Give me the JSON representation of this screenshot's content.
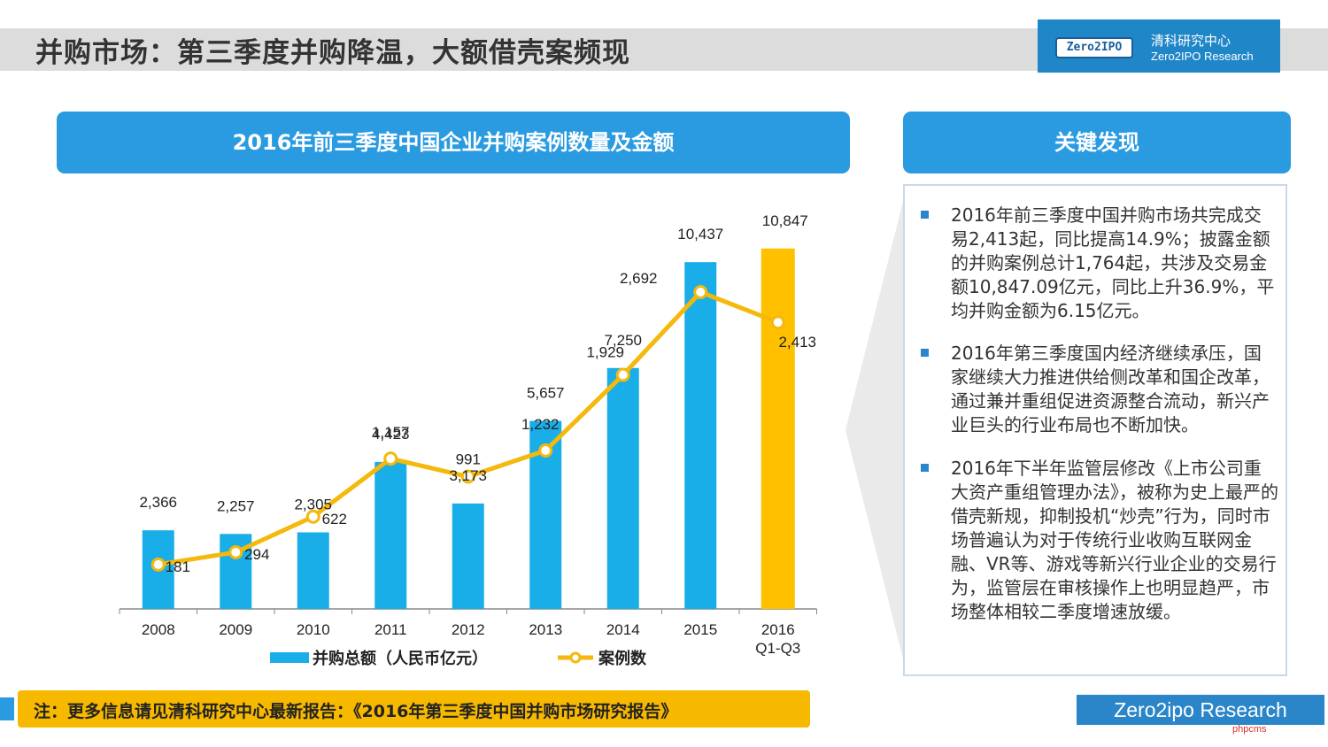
{
  "page_title": "并购市场：第三季度并购降温，大额借壳案频现",
  "logo": {
    "badge": "Zero2IPO",
    "cn": "清科研究中心",
    "en": "Zero2IPO Research"
  },
  "chart_header": "2016年前三季度中国企业并购案例数量及金额",
  "findings_header": "关键发现",
  "findings": [
    "2016年前三季度中国并购市场共完成交易2,413起，同比提高14.9%；披露金额的并购案例总计1,764起，共涉及交易金额10,847.09亿元，同比上升36.9%，平均并购金额为6.15亿元。",
    "2016年第三季度国内经济继续承压，国家继续大力推进供给侧改革和国企改革，通过兼并重组促进资源整合流动，新兴产业巨头的行业布局也不断加快。",
    "2016年下半年监管层修改《上市公司重大资产重组管理办法》，被称为史上最严的借壳新规，抑制投机“炒壳”行为，同时市场普遍认为对于传统行业收购互联网金融、VR等、游戏等新兴行业企业的交易行为，监管层在审核操作上也明显趋严，市场整体相较二季度增速放缓。"
  ],
  "note": "注：更多信息请见清科研究中心最新报告：《2016年第三季度中国并购市场研究报告》",
  "footer_brand": "Zero2ipo Research",
  "watermark": "phpcms",
  "colors": {
    "bar": "#1aaee8",
    "bar_highlight": "#ffc000",
    "line": "#f5b80c",
    "header": "#2a9be0"
  },
  "chart_data": {
    "type": "bar",
    "categories": [
      "2008",
      "2009",
      "2010",
      "2011",
      "2012",
      "2013",
      "2014",
      "2015",
      "2016 Q1-Q3"
    ],
    "series": [
      {
        "name": "并购总额（人民币亿元）",
        "type": "bar",
        "values": [
          2366,
          2257,
          2305,
          4423,
          3173,
          5657,
          7250,
          10437,
          10847
        ],
        "labels": [
          "2,366",
          "2,257",
          "2,305",
          "4,423",
          "3,173",
          "5,657",
          "7,250",
          "10,437",
          "10,847"
        ]
      },
      {
        "name": "案例数",
        "type": "line",
        "values": [
          181,
          294,
          622,
          1157,
          991,
          1232,
          1929,
          2692,
          2413
        ],
        "labels": [
          "181",
          "294",
          "622",
          "1,157",
          "991",
          "1,232",
          "1,929",
          "2,692",
          "2,413"
        ]
      }
    ],
    "legend_position": "bottom",
    "grid": false
  }
}
